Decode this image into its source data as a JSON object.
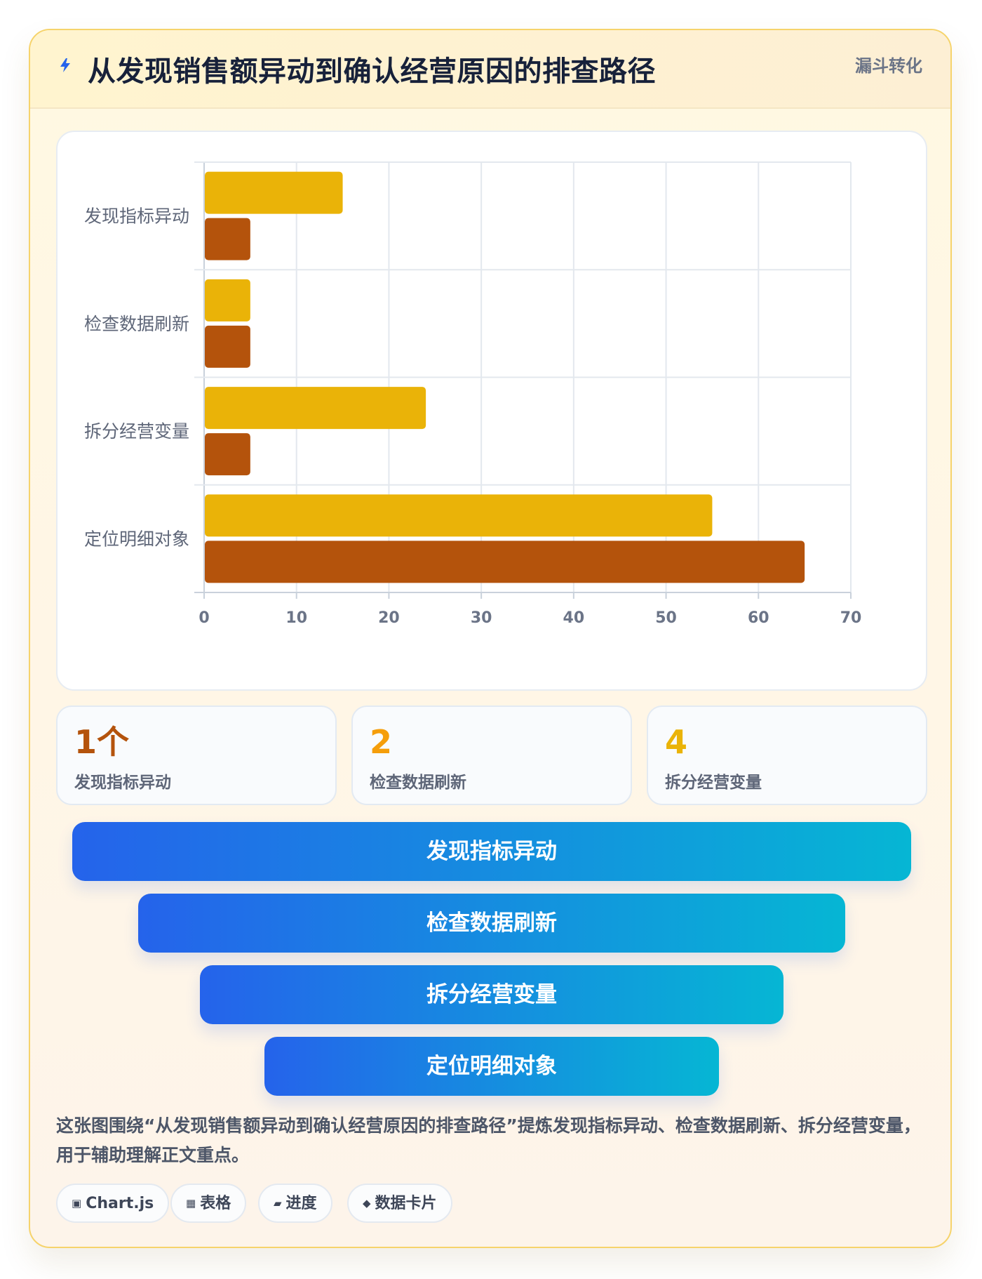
{
  "header": {
    "title": "从发现销售额异动到确认经营原因的排查路径",
    "tag": "漏斗转化",
    "icon": "lightning-bolt-icon"
  },
  "chart_data": {
    "type": "bar",
    "orientation": "horizontal",
    "categories": [
      "发现指标异动",
      "检查数据刷新",
      "拆分经营变量",
      "定位明细对象"
    ],
    "series": [
      {
        "values": [
          15,
          5,
          24,
          55
        ],
        "color": "#eab308"
      },
      {
        "values": [
          5,
          5,
          5,
          65
        ],
        "color": "#b4530c"
      }
    ],
    "xlim": [
      0,
      70
    ],
    "xticks": [
      "0",
      "10",
      "20",
      "30",
      "40",
      "50",
      "60",
      "70"
    ],
    "grid": true,
    "legend": "none"
  },
  "stats": [
    {
      "value": "1个",
      "label": "发现指标异动",
      "color": "#b4530c"
    },
    {
      "value": "2",
      "label": "检查数据刷新",
      "color": "#f59e0b"
    },
    {
      "value": "4",
      "label": "拆分经营变量",
      "color": "#eab308"
    }
  ],
  "funnel": [
    "发现指标异动",
    "检查数据刷新",
    "拆分经营变量",
    "定位明细对象"
  ],
  "description": "这张图围绕“从发现销售额异动到确认经营原因的排查路径”提炼发现指标异动、检查数据刷新、拆分经营变量，用于辅助理解正文重点。",
  "chips": [
    {
      "icon": "▣",
      "label": "Chart.js"
    },
    {
      "icon": "▦",
      "label": "表格"
    },
    {
      "icon": "▰",
      "label": "进度"
    },
    {
      "icon": "◆",
      "label": "数据卡片"
    }
  ]
}
